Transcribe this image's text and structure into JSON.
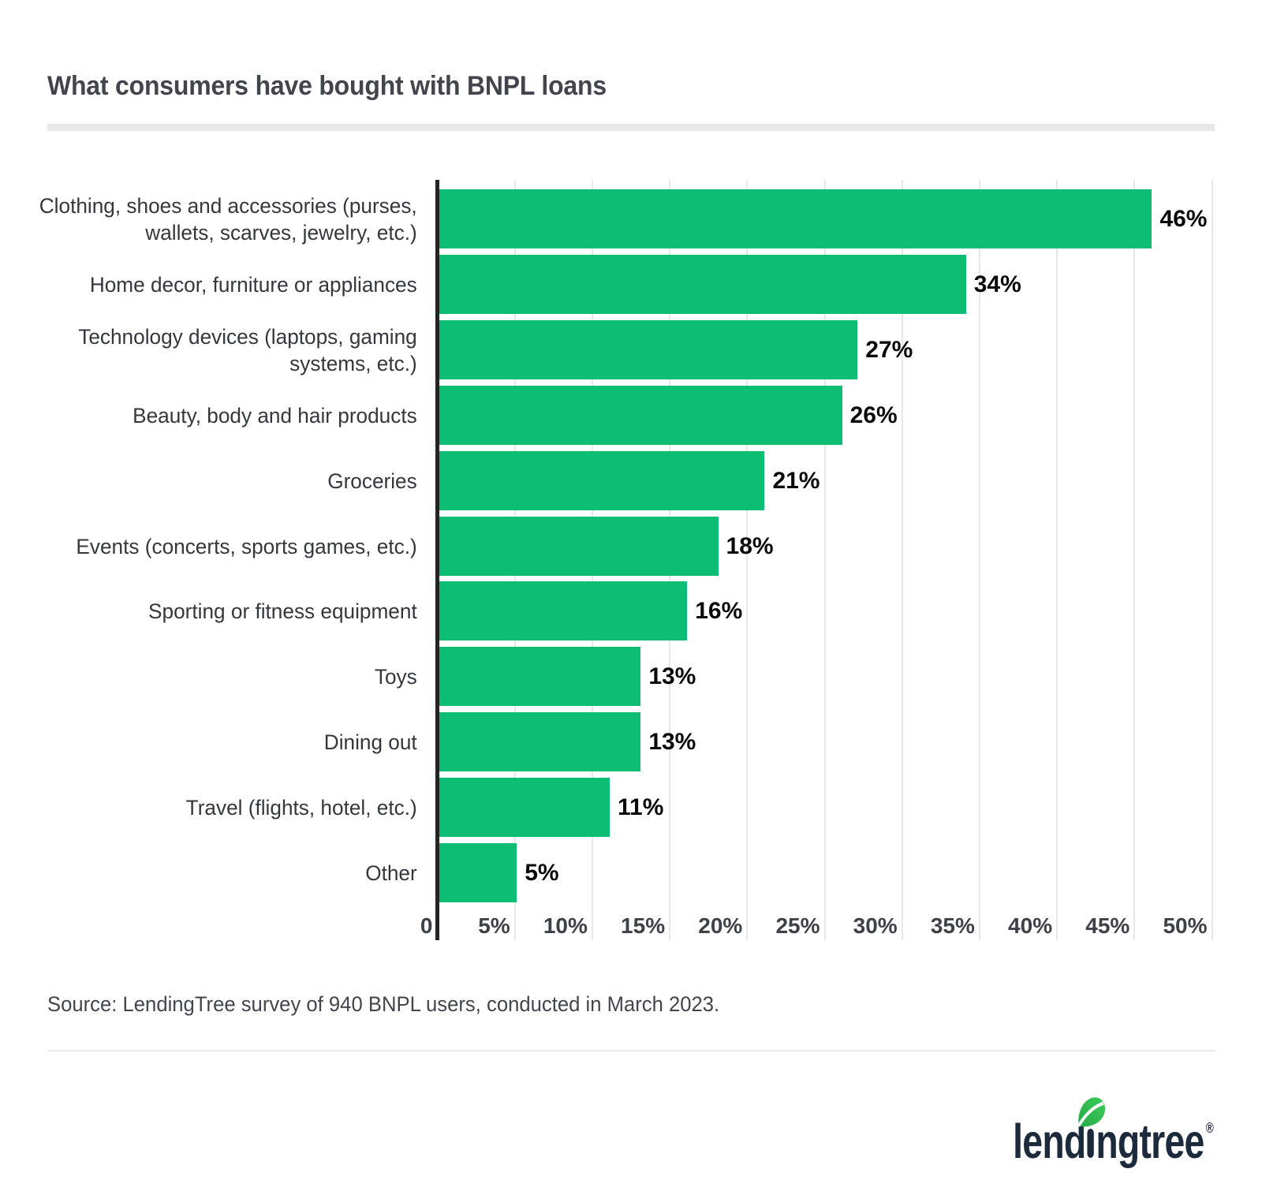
{
  "header": {
    "title": "What consumers have bought with BNPL loans"
  },
  "chart_data": {
    "type": "bar",
    "orientation": "horizontal",
    "title": "What consumers have bought with BNPL loans",
    "categories": [
      "Clothing, shoes and accessories (purses, wallets, scarves, jewelry, etc.)",
      "Home decor, furniture or appliances",
      "Technology devices (laptops, gaming systems, etc.)",
      "Beauty, body and hair products",
      "Groceries",
      "Events (concerts, sports games, etc.)",
      "Sporting or fitness equipment",
      "Toys",
      "Dining out",
      "Travel (flights, hotel, etc.)",
      "Other"
    ],
    "category_lines": [
      [
        "Clothing, shoes and accessories (purses,",
        "wallets, scarves, jewelry, etc.)"
      ],
      [
        "Home decor, furniture or appliances"
      ],
      [
        "Technology devices (laptops, gaming",
        "systems, etc.)"
      ],
      [
        "Beauty, body and hair products"
      ],
      [
        "Groceries"
      ],
      [
        "Events (concerts, sports games, etc.)"
      ],
      [
        "Sporting or fitness equipment"
      ],
      [
        "Toys"
      ],
      [
        "Dining out"
      ],
      [
        "Travel (flights, hotel, etc.)"
      ],
      [
        "Other"
      ]
    ],
    "values": [
      46,
      34,
      27,
      26,
      21,
      18,
      16,
      13,
      13,
      11,
      5
    ],
    "value_labels": [
      "46%",
      "34%",
      "27%",
      "26%",
      "21%",
      "18%",
      "16%",
      "13%",
      "13%",
      "11%",
      "5%"
    ],
    "xlim": [
      0,
      50
    ],
    "x_axis": {
      "ticks": [
        {
          "value": 0,
          "label": "0"
        },
        {
          "value": 5,
          "label": "5%"
        },
        {
          "value": 10,
          "label": "10%"
        },
        {
          "value": 15,
          "label": "15%"
        },
        {
          "value": 20,
          "label": "20%"
        },
        {
          "value": 25,
          "label": "25%"
        },
        {
          "value": 30,
          "label": "30%"
        },
        {
          "value": 35,
          "label": "35%"
        },
        {
          "value": 40,
          "label": "40%"
        },
        {
          "value": 45,
          "label": "45%"
        },
        {
          "value": 50,
          "label": "50%"
        }
      ]
    },
    "grid": true,
    "gridline_step": 5,
    "legend": "none",
    "bar_color": "#0cbd73",
    "gridline_color": "#e7e7e7",
    "axis_line_color": "#242424"
  },
  "source": {
    "text": "Source: LendingTree survey of 940 BNPL users, conducted in March 2023."
  },
  "footer": {
    "logo": {
      "brand": "lendingtree",
      "text_before_i": "lend",
      "text_after_i": "ngtree",
      "registered_mark": "®",
      "navy_color": "#1c2a3c",
      "leaf_green_dark": "#25aa46",
      "leaf_green_light": "#3ecb5d"
    }
  }
}
